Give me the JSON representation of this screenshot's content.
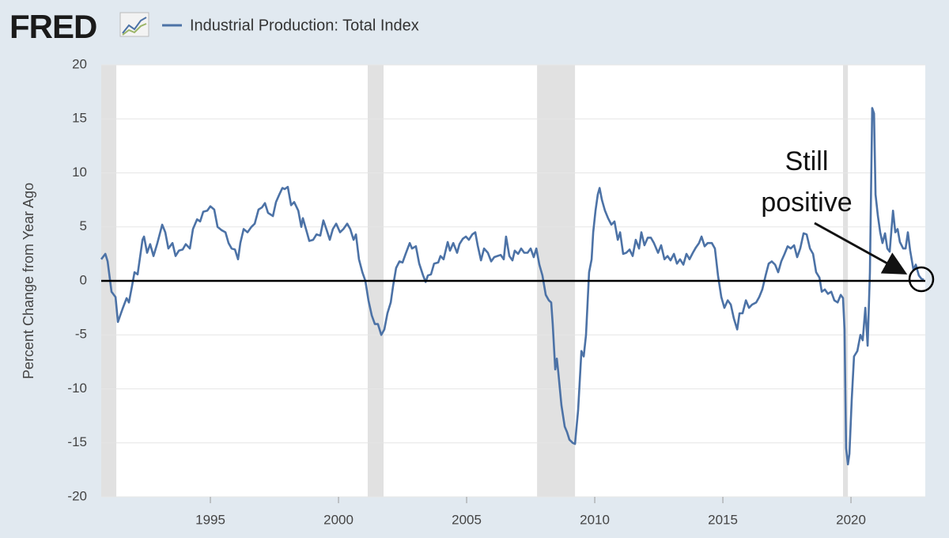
{
  "chart_data": {
    "type": "line",
    "logo": "FRED",
    "ylabel": "Percent Change from Year Ago",
    "annotation": [
      "Still",
      "positive"
    ],
    "reference_line": 0,
    "recessions": [
      [
        1990.74,
        1991.33
      ],
      [
        2001.14,
        2001.76
      ],
      [
        2007.75,
        2009.23
      ],
      [
        2019.69,
        2019.88
      ]
    ],
    "xlim": [
      1990.74,
      2022.9
    ],
    "xticks": [
      1995,
      2000,
      2005,
      2010,
      2015,
      2020
    ],
    "ylim": [
      -20,
      20
    ],
    "yticks": [
      -20,
      -15,
      -10,
      -5,
      0,
      5,
      10,
      15,
      20
    ],
    "grid": true,
    "x": [
      1990.74,
      1990.9,
      1990.99,
      1991.14,
      1991.3,
      1991.39,
      1991.57,
      1991.73,
      1991.82,
      1991.94,
      1992.04,
      1992.16,
      1992.35,
      1992.41,
      1992.53,
      1992.65,
      1992.78,
      1992.93,
      1993.12,
      1993.24,
      1993.36,
      1993.52,
      1993.64,
      1993.77,
      1993.92,
      1994.04,
      1994.2,
      1994.32,
      1994.48,
      1994.6,
      1994.72,
      1994.88,
      1995.0,
      1995.15,
      1995.28,
      1995.43,
      1995.59,
      1995.71,
      1995.83,
      1995.96,
      1996.08,
      1996.17,
      1996.3,
      1996.45,
      1996.6,
      1996.73,
      1996.88,
      1997.01,
      1997.13,
      1997.25,
      1997.44,
      1997.56,
      1997.69,
      1997.81,
      1997.9,
      1998.02,
      1998.15,
      1998.27,
      1998.43,
      1998.55,
      1998.61,
      1998.73,
      1998.86,
      1999.01,
      1999.14,
      1999.29,
      1999.41,
      1999.54,
      1999.66,
      1999.78,
      1999.91,
      2000.06,
      2000.19,
      2000.34,
      2000.46,
      2000.59,
      2000.68,
      2000.8,
      2000.93,
      2001.05,
      2001.17,
      2001.3,
      2001.42,
      2001.54,
      2001.67,
      2001.79,
      2001.91,
      2002.04,
      2002.13,
      2002.25,
      2002.38,
      2002.5,
      2002.62,
      2002.78,
      2002.87,
      2003.02,
      2003.15,
      2003.3,
      2003.4,
      2003.49,
      2003.61,
      2003.73,
      2003.89,
      2003.98,
      2004.1,
      2004.26,
      2004.35,
      2004.48,
      2004.63,
      2004.72,
      2004.85,
      2004.97,
      2005.09,
      2005.22,
      2005.34,
      2005.43,
      2005.56,
      2005.68,
      2005.83,
      2005.96,
      2006.08,
      2006.2,
      2006.33,
      2006.45,
      2006.54,
      2006.67,
      2006.79,
      2006.88,
      2007.01,
      2007.13,
      2007.25,
      2007.38,
      2007.5,
      2007.62,
      2007.72,
      2007.84,
      2007.96,
      2008.09,
      2008.21,
      2008.3,
      2008.36,
      2008.46,
      2008.52,
      2008.58,
      2008.7,
      2008.83,
      2008.92,
      2009.01,
      2009.14,
      2009.23,
      2009.35,
      2009.48,
      2009.57,
      2009.66,
      2009.78,
      2009.88,
      2009.94,
      2010.03,
      2010.12,
      2010.19,
      2010.28,
      2010.4,
      2010.52,
      2010.65,
      2010.77,
      2010.9,
      2010.99,
      2011.11,
      2011.23,
      2011.36,
      2011.48,
      2011.6,
      2011.73,
      2011.82,
      2011.94,
      2012.07,
      2012.19,
      2012.31,
      2012.47,
      2012.59,
      2012.72,
      2012.84,
      2012.96,
      2013.09,
      2013.21,
      2013.33,
      2013.46,
      2013.58,
      2013.7,
      2013.83,
      2013.95,
      2014.07,
      2014.17,
      2014.29,
      2014.41,
      2014.57,
      2014.69,
      2014.81,
      2014.94,
      2015.06,
      2015.19,
      2015.31,
      2015.43,
      2015.56,
      2015.65,
      2015.77,
      2015.9,
      2016.02,
      2016.14,
      2016.3,
      2016.42,
      2016.54,
      2016.67,
      2016.79,
      2016.91,
      2017.04,
      2017.16,
      2017.28,
      2017.41,
      2017.53,
      2017.65,
      2017.78,
      2017.9,
      2018.02,
      2018.15,
      2018.27,
      2018.4,
      2018.52,
      2018.64,
      2018.77,
      2018.86,
      2018.98,
      2019.1,
      2019.23,
      2019.35,
      2019.48,
      2019.6,
      2019.69,
      2019.75,
      2019.81,
      2019.88,
      2019.94,
      2020.03,
      2020.12,
      2020.25,
      2020.37,
      2020.46,
      2020.56,
      2020.65,
      2020.74,
      2020.83,
      2020.9,
      2020.96,
      2021.05,
      2021.14,
      2021.23,
      2021.33,
      2021.42,
      2021.51,
      2021.64,
      2021.73,
      2021.82,
      2021.91,
      2022.04,
      2022.13,
      2022.22,
      2022.31,
      2022.44,
      2022.53,
      2022.65,
      2022.75,
      2022.84
    ],
    "series": [
      {
        "name": "Industrial Production: Total Index",
        "color": "#4c72a6",
        "values": [
          2.0,
          2.5,
          1.8,
          -1.0,
          -1.5,
          -3.8,
          -2.6,
          -1.6,
          -2.0,
          -0.5,
          0.8,
          0.6,
          3.8,
          4.1,
          2.6,
          3.4,
          2.3,
          3.5,
          5.2,
          4.5,
          3.0,
          3.5,
          2.3,
          2.8,
          2.9,
          3.4,
          3.0,
          4.8,
          5.7,
          5.5,
          6.4,
          6.5,
          6.9,
          6.6,
          5.0,
          4.7,
          4.5,
          3.5,
          3.0,
          2.9,
          2.0,
          3.5,
          4.8,
          4.5,
          5.0,
          5.3,
          6.6,
          6.8,
          7.2,
          6.3,
          6.0,
          7.3,
          8.0,
          8.6,
          8.5,
          8.7,
          7.0,
          7.3,
          6.5,
          5.0,
          5.8,
          4.8,
          3.7,
          3.8,
          4.3,
          4.2,
          5.6,
          4.7,
          3.8,
          4.8,
          5.3,
          4.5,
          4.8,
          5.3,
          4.8,
          3.8,
          4.3,
          2.0,
          0.8,
          0.0,
          -1.8,
          -3.2,
          -4.0,
          -4.0,
          -5.0,
          -4.5,
          -3.0,
          -2.0,
          -0.5,
          1.2,
          1.8,
          1.7,
          2.5,
          3.5,
          3.0,
          3.2,
          1.6,
          0.5,
          -0.1,
          0.5,
          0.6,
          1.6,
          1.7,
          2.3,
          2.0,
          3.6,
          2.8,
          3.5,
          2.6,
          3.4,
          3.9,
          4.1,
          3.8,
          4.3,
          4.5,
          3.3,
          1.9,
          3.0,
          2.6,
          1.8,
          2.2,
          2.3,
          2.4,
          2.0,
          4.1,
          2.3,
          1.9,
          2.8,
          2.5,
          3.0,
          2.6,
          2.6,
          3.0,
          2.2,
          3.0,
          1.5,
          0.5,
          -1.3,
          -1.8,
          -2.0,
          -4.0,
          -8.2,
          -7.2,
          -8.5,
          -11.5,
          -13.5,
          -14.0,
          -14.7,
          -15.0,
          -15.1,
          -12.0,
          -6.5,
          -7.0,
          -5.0,
          0.8,
          2.0,
          4.5,
          6.5,
          8.0,
          8.6,
          7.5,
          6.5,
          5.8,
          5.2,
          5.5,
          3.8,
          4.5,
          2.5,
          2.6,
          2.9,
          2.3,
          3.8,
          3.0,
          4.5,
          3.3,
          4.0,
          4.0,
          3.5,
          2.6,
          3.3,
          2.0,
          2.3,
          1.9,
          2.5,
          1.6,
          2.0,
          1.5,
          2.5,
          2.0,
          2.6,
          3.1,
          3.5,
          4.1,
          3.2,
          3.5,
          3.5,
          3.0,
          0.5,
          -1.5,
          -2.5,
          -1.8,
          -2.2,
          -3.5,
          -4.5,
          -3.0,
          -3.0,
          -1.8,
          -2.5,
          -2.2,
          -2.0,
          -1.5,
          -0.8,
          0.5,
          1.6,
          1.8,
          1.5,
          0.8,
          1.8,
          2.5,
          3.2,
          3.0,
          3.3,
          2.2,
          3.0,
          4.4,
          4.3,
          3.0,
          2.5,
          0.8,
          0.3,
          -1.0,
          -0.8,
          -1.2,
          -1.0,
          -1.8,
          -2.0,
          -1.3,
          -1.6,
          -4.5,
          -15.5,
          -17.0,
          -16.0,
          -11.0,
          -7.0,
          -6.5,
          -5.0,
          -5.5,
          -2.5,
          -6.0,
          0.8,
          16.0,
          15.5,
          8.0,
          6.0,
          4.5,
          3.5,
          4.4,
          3.0,
          2.7,
          6.5,
          4.5,
          4.8,
          3.6,
          3.0,
          3.0,
          4.5,
          2.8,
          1.0,
          1.5,
          0.5,
          0.2,
          0.1
        ]
      }
    ]
  }
}
